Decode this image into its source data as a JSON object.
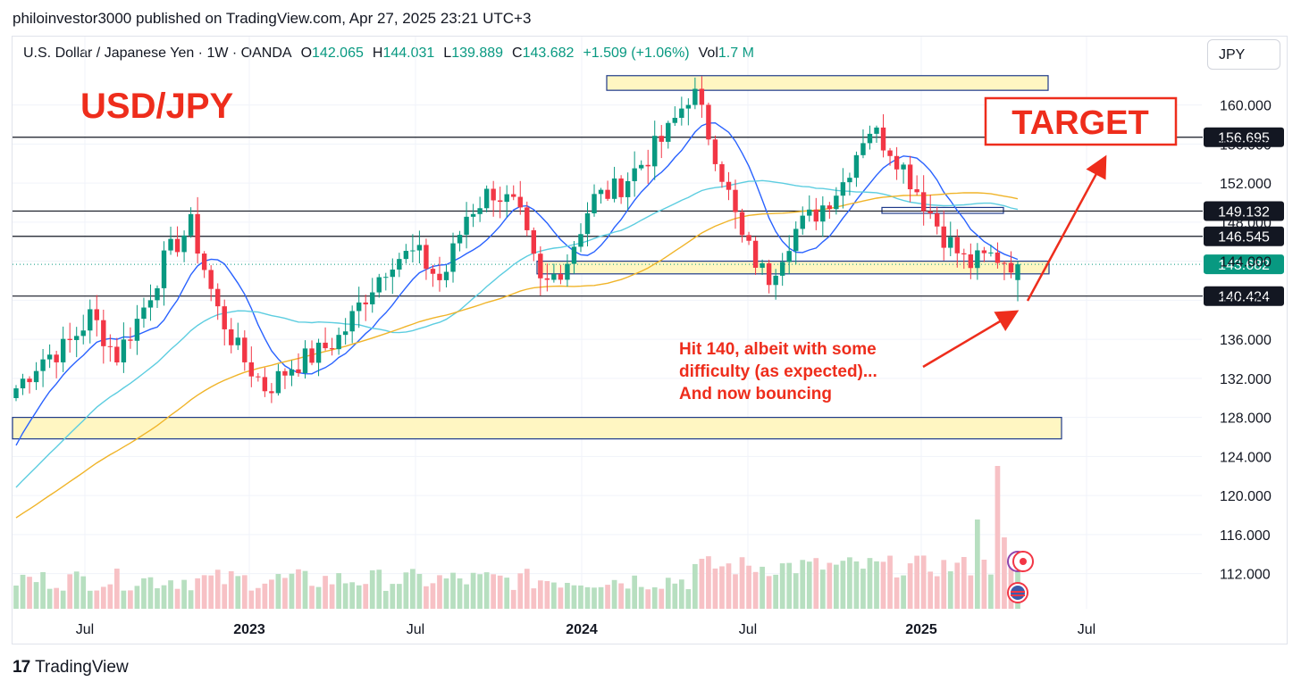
{
  "publisher_line": "philoinvestor3000 published on TradingView.com, Apr 27, 2025 23:21 UTC+3",
  "legend": {
    "symbol": "U.S. Dollar / Japanese Yen · 1W · OANDA",
    "open_label": "O",
    "open": "142.065",
    "high_label": "H",
    "high": "144.031",
    "low_label": "L",
    "low": "139.889",
    "close_label": "C",
    "close": "143.682",
    "change": "+1.509 (+1.06%)",
    "vol_label": "Vol",
    "vol": "1.7 M"
  },
  "currency_button": "JPY",
  "footer_brand": "TradingView",
  "colors": {
    "up": "#089981",
    "down": "#f23645",
    "up_vol": "#b7dfc0",
    "down_vol": "#f7c1c5",
    "ma_fast": "#2962ff",
    "ma_mid": "#5dcde0",
    "ma_slow": "#f0b429",
    "annotation": "#ee2d1c",
    "zone_fill": "#fff6c2",
    "zone_stroke": "#1e3a8a"
  },
  "chart_data": {
    "type": "candlestick",
    "title": "USD/JPY",
    "target_label": "TARGET",
    "annotation": [
      "Hit 140, albeit with some",
      "difficulty (as expected)...",
      "And now bouncing"
    ],
    "x_ticks": [
      "Jul",
      "2023",
      "Jul",
      "2024",
      "Jul",
      "2025",
      "Jul"
    ],
    "y_ticks": [
      112,
      116,
      120,
      124,
      128,
      132,
      136,
      140,
      144,
      148,
      152,
      156,
      160
    ],
    "y_range": [
      108.4,
      167
    ],
    "price_lines": [
      {
        "label": "156.695",
        "value": 156.695
      },
      {
        "label": "149.132",
        "value": 149.132
      },
      {
        "label": "146.545",
        "value": 146.545
      },
      {
        "label": "140.424",
        "value": 140.424
      }
    ],
    "current_price": {
      "label": "143.682",
      "value": 143.682
    },
    "zones": [
      {
        "from": 161.5,
        "to": 163.0
      },
      {
        "from": 142.7,
        "to": 144.0
      },
      {
        "from": 125.8,
        "to": 128.0
      },
      {
        "from": 148.9,
        "to": 149.5
      }
    ],
    "ohlc_anchors": [
      [
        131.0,
        134.1,
        127.0
      ],
      [
        134.0,
        137.0,
        131.0
      ],
      [
        135.2,
        137.0,
        133.5
      ],
      [
        138.5,
        139.5,
        136.0
      ],
      [
        134.2,
        136.5,
        132.2
      ],
      [
        138.7,
        145.0,
        137.5
      ],
      [
        144.5,
        147.5,
        140.0
      ],
      [
        147.7,
        151.9,
        144.0
      ],
      [
        139.2,
        146.0,
        137.0
      ],
      [
        134.2,
        139.5,
        130.0
      ],
      [
        130.9,
        135.0,
        127.3
      ],
      [
        133.3,
        136.5,
        129.0
      ],
      [
        134.5,
        138.0,
        131.0
      ],
      [
        136.4,
        140.0,
        133.0
      ],
      [
        140.7,
        145.0,
        138.0
      ],
      [
        144.3,
        145.0,
        137.0
      ],
      [
        144.8,
        146.5,
        140.0
      ],
      [
        141.8,
        147.0,
        140.0
      ],
      [
        148.8,
        150.0,
        144.0
      ],
      [
        151.3,
        151.7,
        146.0
      ],
      [
        149.4,
        152.0,
        145.0
      ],
      [
        141.1,
        151.0,
        140.8
      ],
      [
        144.1,
        148.0,
        141.0
      ],
      [
        150.3,
        152.0,
        145.0
      ],
      [
        151.4,
        152.0,
        148.0
      ],
      [
        154.1,
        160.0,
        151.0
      ],
      [
        157.0,
        158.0,
        153.0
      ],
      [
        161.7,
        161.9,
        156.0
      ],
      [
        154.6,
        161.0,
        148.0
      ],
      [
        146.2,
        150.0,
        141.8
      ],
      [
        142.1,
        149.0,
        139.7
      ],
      [
        146.9,
        149.0,
        142.0
      ],
      [
        149.1,
        150.0,
        145.0
      ],
      [
        152.0,
        154.0,
        147.0
      ],
      [
        157.8,
        158.8,
        150.0
      ],
      [
        155.4,
        158.5,
        152.0
      ],
      [
        151.2,
        155.0,
        149.5
      ],
      [
        146.8,
        151.0,
        146.0
      ],
      [
        143.6,
        150.0,
        142.5
      ],
      [
        144.6,
        147.5,
        139.9
      ],
      [
        143.7,
        144.0,
        139.9
      ]
    ],
    "volume_note": "volume histogram shown under the price panel"
  }
}
